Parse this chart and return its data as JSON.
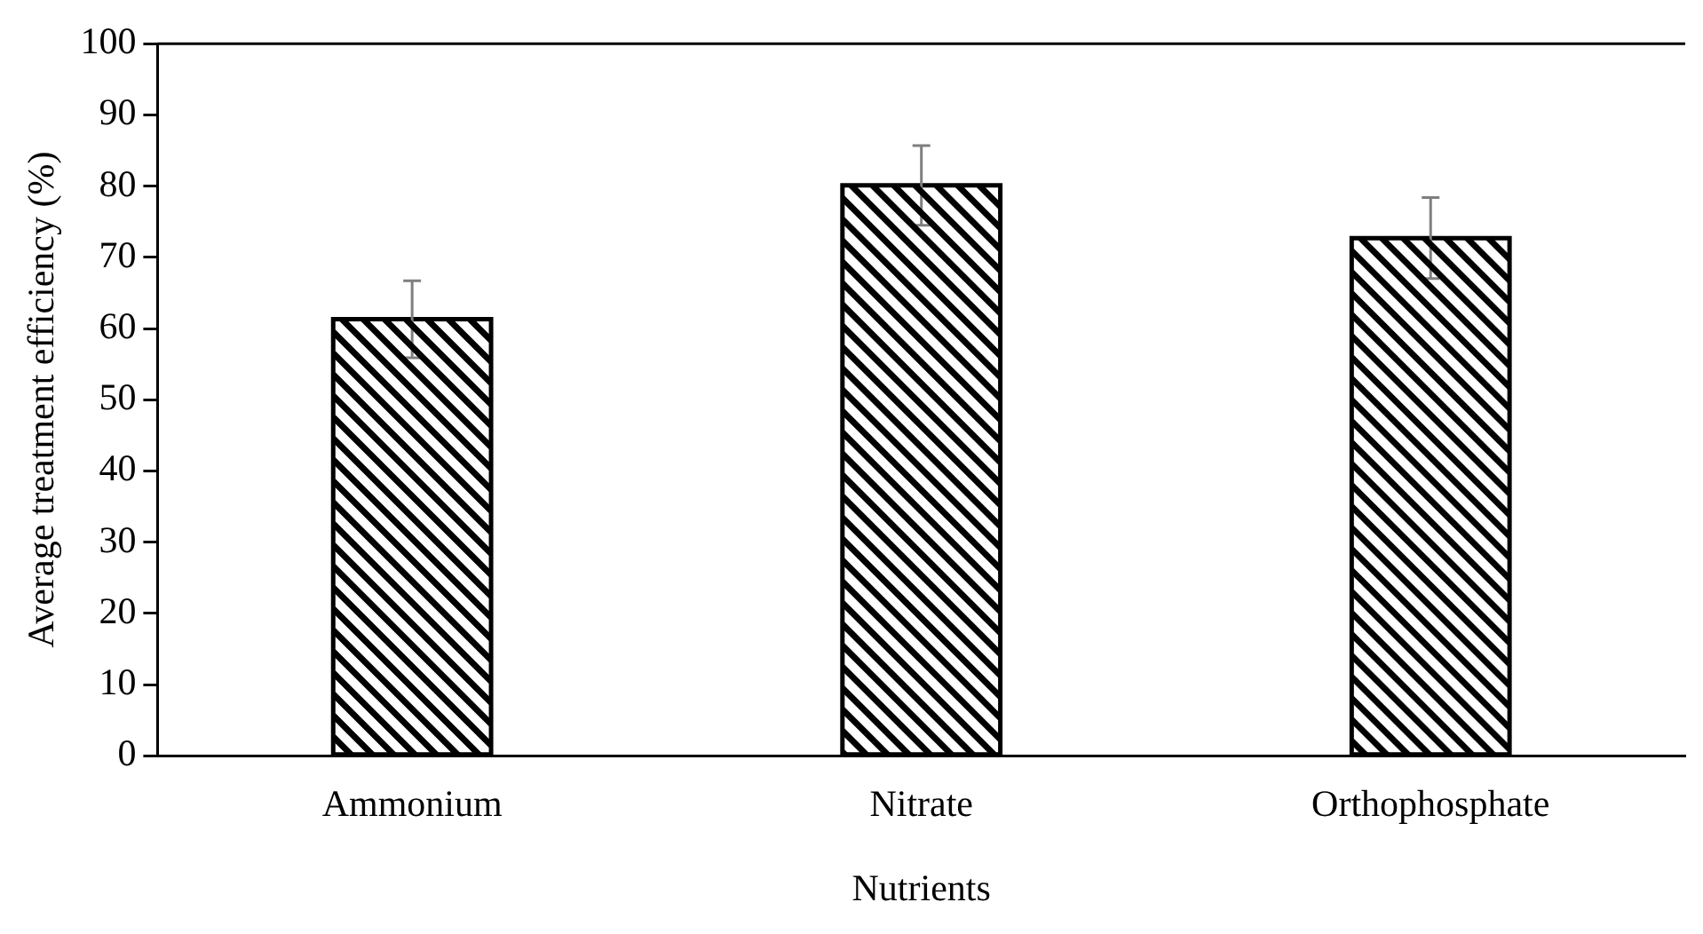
{
  "chart_data": {
    "type": "bar",
    "xlabel": "Nutrients",
    "ylabel": "Average treatment efficiency (%)",
    "categories": [
      "Ammonium",
      "Nitrate",
      "Orthophosphate"
    ],
    "values": [
      61.3,
      80.1,
      72.7
    ],
    "errors": [
      5.4,
      5.6,
      5.7
    ],
    "color": "#000000",
    "ylim": [
      0,
      100
    ],
    "yticks": [
      0,
      10,
      20,
      30,
      40,
      50,
      60,
      70,
      80,
      90,
      100
    ],
    "grid": false,
    "legend": false
  }
}
